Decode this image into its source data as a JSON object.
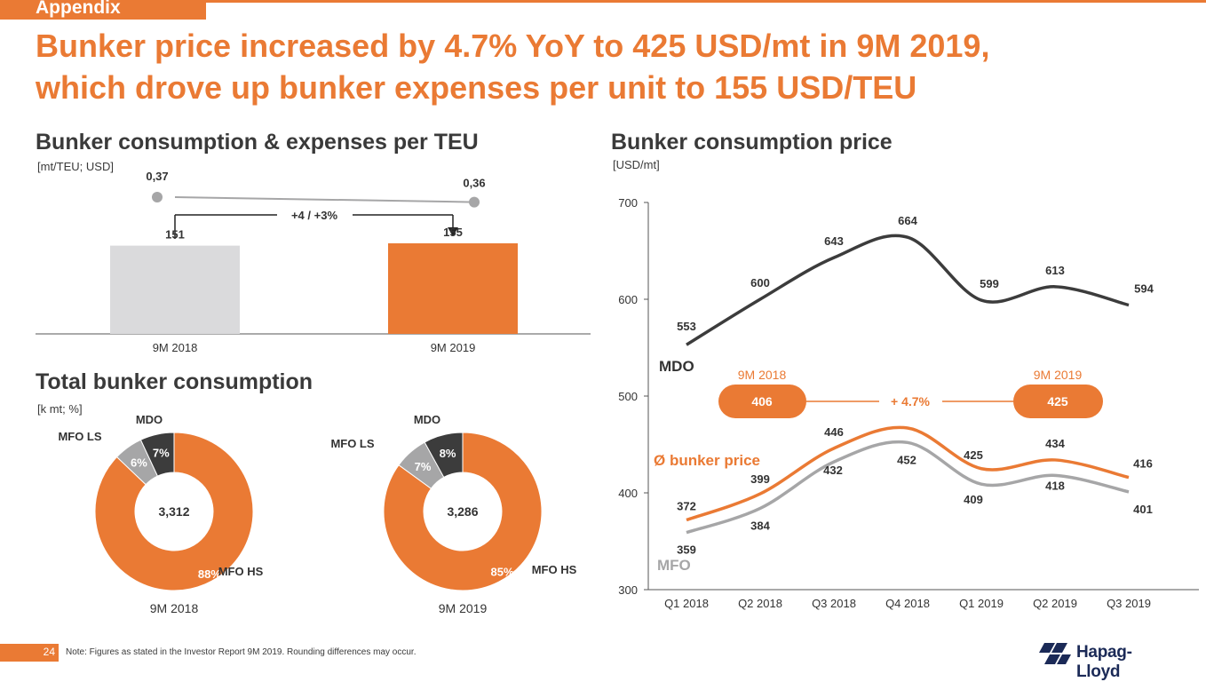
{
  "header": {
    "section_tag": "Appendix",
    "headline_line1": "Bunker price increased by 4.7% YoY to 425 USD/mt in 9M 2019,",
    "headline_line2": "which drove up bunker expenses per unit to 155 USD/TEU"
  },
  "colors": {
    "accent": "#ea7a34",
    "dark": "#3c3c3c",
    "grey": "#a6a6a7",
    "light_grey": "#dadadc"
  },
  "chart_data": [
    {
      "type": "bar",
      "title": "Bunker consumption & expenses per TEU",
      "unit_label": "[mt/TEU; USD]",
      "categories": [
        "9M 2018",
        "9M 2019"
      ],
      "series": [
        {
          "values": [
            151,
            155
          ],
          "value_labels": [
            "151",
            "155"
          ]
        },
        {
          "values": [
            0.37,
            0.36
          ],
          "value_labels": [
            "0,37",
            "0,36"
          ]
        }
      ],
      "annotation": "+4 / +3%",
      "ylim": [
        0,
        200
      ]
    },
    {
      "type": "pie",
      "title": "Total bunker consumption",
      "unit_label": "[k mt; %]",
      "donuts": [
        {
          "label": "9M 2018",
          "center_value": "3,312",
          "slices": [
            {
              "name": "MFO HS",
              "value": 88,
              "label": "88%"
            },
            {
              "name": "MFO LS",
              "value": 6,
              "label": "6%"
            },
            {
              "name": "MDO",
              "value": 7,
              "label": "7%"
            }
          ]
        },
        {
          "label": "9M 2019",
          "center_value": "3,286",
          "slices": [
            {
              "name": "MFO HS",
              "value": 85,
              "label": "85%"
            },
            {
              "name": "MFO LS",
              "value": 7,
              "label": "7%"
            },
            {
              "name": "MDO",
              "value": 8,
              "label": "8%"
            }
          ]
        }
      ]
    },
    {
      "type": "line",
      "title": "Bunker consumption price",
      "unit_label": "[USD/mt]",
      "x": [
        "Q1 2018",
        "Q2 2018",
        "Q3 2018",
        "Q4 2018",
        "Q1 2019",
        "Q2 2019",
        "Q3 2019"
      ],
      "ylim": [
        300,
        700
      ],
      "yticks": [
        300,
        400,
        500,
        600,
        700
      ],
      "series": [
        {
          "name": "MDO",
          "values": [
            553,
            600,
            643,
            664,
            599,
            613,
            594
          ]
        },
        {
          "name": "Ø bunker price",
          "values": [
            372,
            399,
            446,
            467,
            425,
            434,
            416
          ]
        },
        {
          "name": "MFO",
          "values": [
            359,
            384,
            432,
            452,
            409,
            418,
            401
          ]
        }
      ],
      "callout": {
        "left_label": "9M 2018",
        "left_value": "406",
        "change": "+ 4.7%",
        "right_label": "9M 2019",
        "right_value": "425"
      }
    }
  ],
  "footer": {
    "page_number": "24",
    "note": "Note: Figures as stated in the Investor Report 9M 2019. Rounding differences may occur.",
    "logo_text": "Hapag-Lloyd"
  }
}
